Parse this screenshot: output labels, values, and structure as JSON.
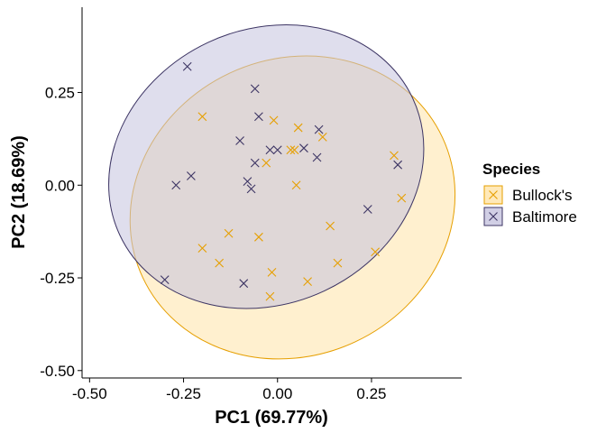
{
  "chart_data": {
    "type": "scatter",
    "xlabel": "PC1 (69.77%)",
    "ylabel": "PC2 (18.69%)",
    "xlim": [
      -0.52,
      0.49
    ],
    "ylim": [
      -0.52,
      0.48
    ],
    "x_ticks": [
      -0.5,
      -0.25,
      0.0,
      0.25
    ],
    "x_tick_labels": [
      "-0.50",
      "-0.25",
      "0.00",
      "0.25"
    ],
    "y_ticks": [
      -0.5,
      -0.25,
      0.0,
      0.25
    ],
    "y_tick_labels": [
      "-0.50",
      "-0.25",
      "0.00",
      "0.25"
    ],
    "grid": false,
    "legend": {
      "title": "Species",
      "position": "right"
    },
    "series": [
      {
        "name": "Bullock's",
        "point_color": "#E69F00",
        "fill_color": "#FFE3A8",
        "ellipse": {
          "center": [
            0.04,
            -0.06
          ],
          "rx": 0.44,
          "ry": 0.4,
          "rotation_deg": 25
        },
        "points": [
          [
            -0.2,
            0.185
          ],
          [
            -0.03,
            0.06
          ],
          [
            -0.01,
            0.175
          ],
          [
            0.035,
            0.095
          ],
          [
            0.045,
            0.095
          ],
          [
            0.055,
            0.155
          ],
          [
            0.12,
            0.13
          ],
          [
            0.05,
            0.0
          ],
          [
            0.31,
            0.08
          ],
          [
            0.33,
            -0.035
          ],
          [
            0.14,
            -0.11
          ],
          [
            0.26,
            -0.18
          ],
          [
            0.16,
            -0.21
          ],
          [
            0.08,
            -0.26
          ],
          [
            -0.015,
            -0.235
          ],
          [
            -0.02,
            -0.3
          ],
          [
            -0.05,
            -0.14
          ],
          [
            -0.13,
            -0.13
          ],
          [
            -0.2,
            -0.17
          ],
          [
            -0.155,
            -0.21
          ]
        ]
      },
      {
        "name": "Baltimore",
        "point_color": "#3D3564",
        "fill_color": "#C5C3DE",
        "ellipse": {
          "center": [
            -0.03,
            0.05
          ],
          "rx": 0.43,
          "ry": 0.37,
          "rotation_deg": 25
        },
        "points": [
          [
            -0.24,
            0.32
          ],
          [
            -0.06,
            0.26
          ],
          [
            -0.05,
            0.185
          ],
          [
            -0.1,
            0.12
          ],
          [
            -0.02,
            0.095
          ],
          [
            0.0,
            0.095
          ],
          [
            0.07,
            0.1
          ],
          [
            0.11,
            0.15
          ],
          [
            0.105,
            0.075
          ],
          [
            -0.06,
            0.06
          ],
          [
            -0.23,
            0.025
          ],
          [
            -0.27,
            0.0
          ],
          [
            -0.08,
            0.01
          ],
          [
            -0.07,
            -0.01
          ],
          [
            0.32,
            0.055
          ],
          [
            0.24,
            -0.065
          ],
          [
            -0.3,
            -0.255
          ],
          [
            -0.09,
            -0.265
          ]
        ]
      }
    ]
  }
}
